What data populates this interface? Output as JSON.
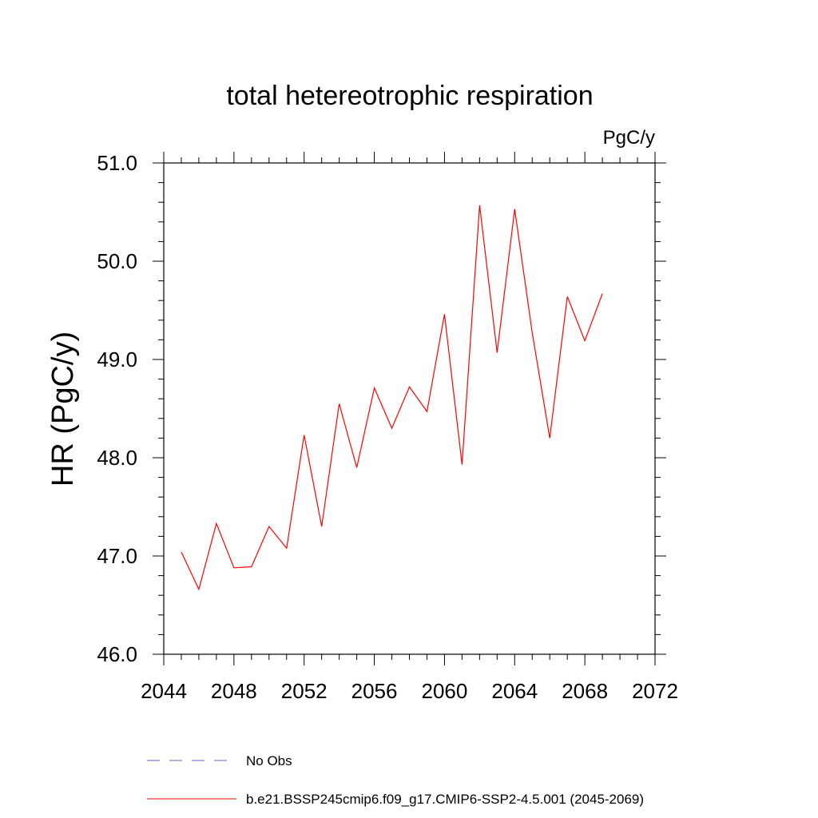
{
  "chart_data": {
    "type": "line",
    "title": "total hetereotrophic respiration",
    "units": "PgC/y",
    "xlabel": "",
    "ylabel": "HR  (PgC/y)",
    "xlim": [
      2044,
      2072
    ],
    "ylim": [
      46.0,
      51.0
    ],
    "xticks": [
      "2044",
      "2048",
      "2052",
      "2056",
      "2060",
      "2064",
      "2068",
      "2072"
    ],
    "yticks": [
      "46.0",
      "47.0",
      "48.0",
      "49.0",
      "50.0",
      "51.0"
    ],
    "series": [
      {
        "name": "b.e21.BSSP245cmip6.f09_g17.CMIP6-SSP2-4.5.001 (2045-2069)",
        "color": "#ff0000",
        "style": "solid",
        "x": [
          2045,
          2046,
          2047,
          2048,
          2049,
          2050,
          2051,
          2052,
          2053,
          2054,
          2055,
          2056,
          2057,
          2058,
          2059,
          2060,
          2061,
          2062,
          2063,
          2064,
          2065,
          2066,
          2067,
          2068,
          2069
        ],
        "y": [
          47.04,
          46.66,
          47.33,
          46.88,
          46.89,
          47.3,
          47.08,
          48.23,
          47.3,
          48.55,
          47.9,
          48.71,
          48.3,
          48.72,
          48.47,
          49.46,
          47.93,
          50.57,
          49.07,
          50.53,
          49.27,
          48.2,
          49.64,
          49.19,
          49.67
        ]
      }
    ],
    "legend": [
      {
        "label": "No Obs",
        "color": "#6a5acd",
        "style": "dashed"
      },
      {
        "label": "b.e21.BSSP245cmip6.f09_g17.CMIP6-SSP2-4.5.001 (2045-2069)",
        "color": "#ff0000",
        "style": "solid"
      }
    ],
    "legend_position": "bottom"
  }
}
